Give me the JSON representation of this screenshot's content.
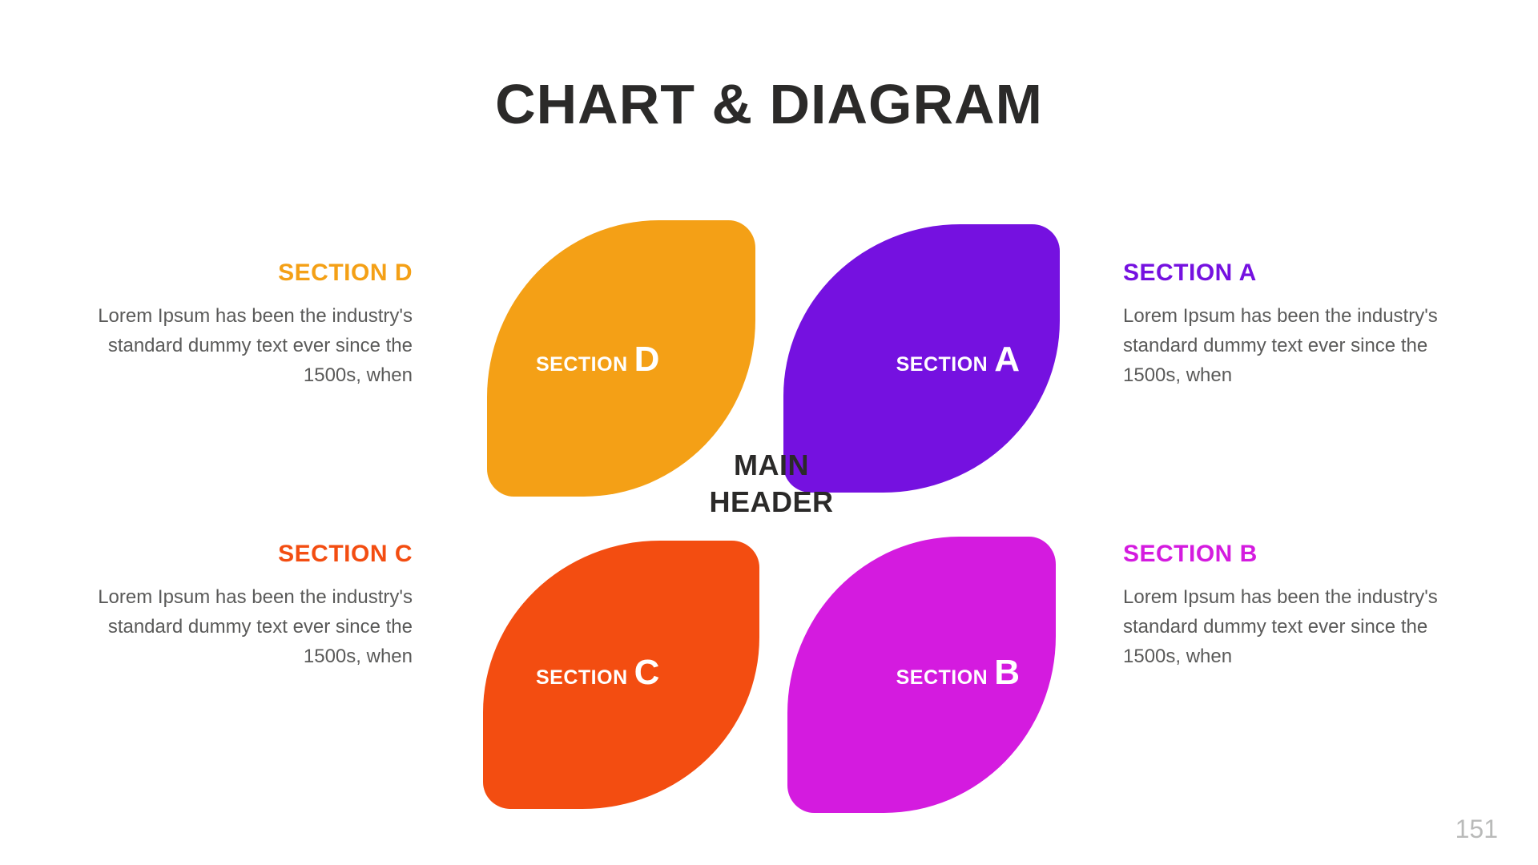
{
  "type": "infographic",
  "page_number": "151",
  "background_color": "#ffffff",
  "title": {
    "text": "CHART & DIAGRAM",
    "color": "#2b2a29",
    "fontsize": 70,
    "weight": 900
  },
  "center": {
    "line1": "MAIN",
    "line2": "HEADER",
    "color": "#2b2a29",
    "fontsize": 36
  },
  "body_text_color": "#5a5a59",
  "page_number_color": "#b9bab9",
  "petal_label_style": {
    "small_fontsize": 25,
    "big_fontsize": 44,
    "color": "#ffffff"
  },
  "petals": {
    "A": {
      "fill": "#7511e0",
      "label_small": "SECTION",
      "label_big": "A"
    },
    "B": {
      "fill": "#d41bdf",
      "label_small": "SECTION",
      "label_big": "B"
    },
    "C": {
      "fill": "#f34d11",
      "label_small": "SECTION",
      "label_big": "C"
    },
    "D": {
      "fill": "#f4a016",
      "label_small": "SECTION",
      "label_big": "D"
    }
  },
  "sections": {
    "A": {
      "heading": "SECTION A",
      "heading_color": "#7511e0",
      "body": "Lorem Ipsum has been the industry's standard dummy text ever since the 1500s, when"
    },
    "B": {
      "heading": "SECTION B",
      "heading_color": "#d41bdf",
      "body": "Lorem Ipsum has been the industry's standard dummy text ever since the 1500s, when"
    },
    "C": {
      "heading": "SECTION C",
      "heading_color": "#f34d11",
      "body": "Lorem Ipsum has been the industry's standard dummy text ever since the 1500s, when"
    },
    "D": {
      "heading": "SECTION D",
      "heading_color": "#f4a016",
      "body": "Lorem Ipsum has been the industry's standard dummy text ever since the 1500s, when"
    }
  }
}
